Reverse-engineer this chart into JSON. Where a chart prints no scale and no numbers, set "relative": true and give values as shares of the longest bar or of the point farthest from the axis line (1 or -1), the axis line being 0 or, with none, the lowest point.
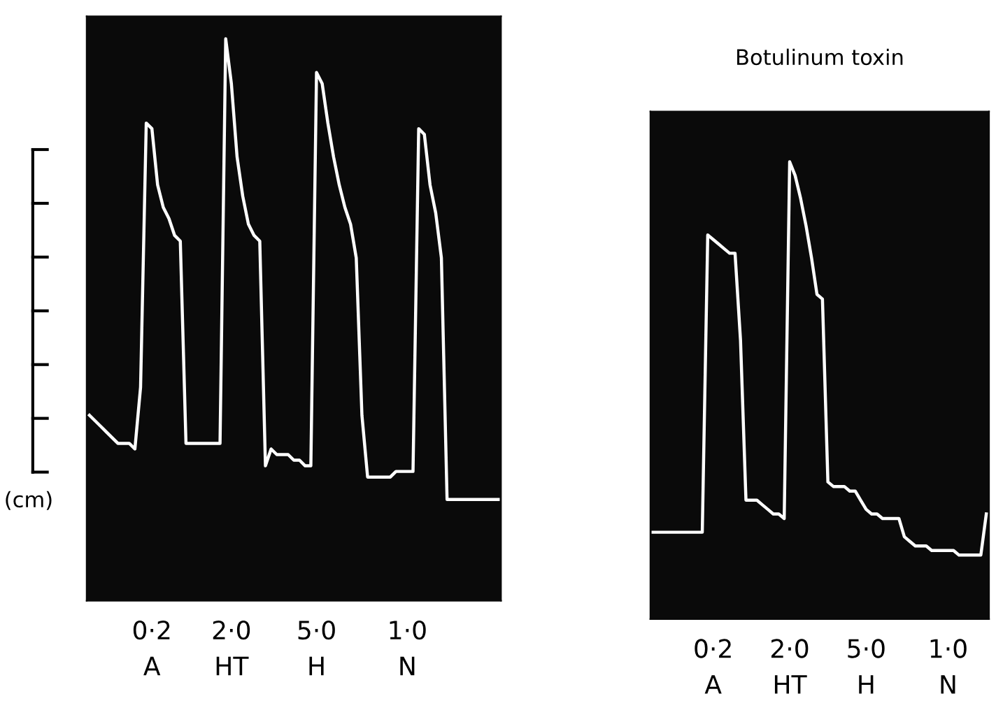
{
  "chart_data": [
    {
      "type": "line",
      "relative": true,
      "ylabel": "(cm)",
      "categories": [
        null,
        null,
        null,
        null,
        null,
        null,
        null,
        null,
        null,
        null,
        null,
        "0·2\nA",
        null,
        null,
        null,
        null,
        null,
        null,
        null,
        null,
        null,
        null,
        null,
        null,
        null,
        "2·0\nHT",
        null,
        null,
        null,
        null,
        null,
        null,
        null,
        null,
        null,
        null,
        null,
        null,
        null,
        null,
        "5·0\nH",
        null,
        null,
        null,
        null,
        null,
        null,
        null,
        null,
        null,
        null,
        null,
        null,
        null,
        null,
        null,
        "1·0\nN",
        null,
        null,
        null,
        null,
        null,
        null,
        null,
        null,
        null,
        null,
        null,
        null,
        null,
        null,
        null,
        null
      ],
      "series": [
        {
          "color": "#ffffff",
          "values": [
            0.33,
            0.32,
            0.31,
            0.3,
            0.29,
            0.28,
            0.28,
            0.28,
            0.27,
            0.38,
            0.85,
            0.84,
            0.74,
            0.7,
            0.68,
            0.65,
            0.64,
            0.28,
            0.28,
            0.28,
            0.28,
            0.28,
            0.28,
            0.28,
            1.0,
            0.92,
            0.79,
            0.72,
            0.67,
            0.65,
            0.64,
            0.24,
            0.27,
            0.26,
            0.26,
            0.26,
            0.25,
            0.25,
            0.24,
            0.24,
            0.94,
            0.92,
            0.85,
            0.79,
            0.74,
            0.7,
            0.67,
            0.61,
            0.33,
            0.22,
            0.22,
            0.22,
            0.22,
            0.22,
            0.23,
            0.23,
            0.23,
            0.23,
            0.84,
            0.83,
            0.74,
            0.69,
            0.61,
            0.18,
            0.18,
            0.18,
            0.18,
            0.18,
            0.18,
            0.18,
            0.18,
            0.18,
            0.18
          ]
        }
      ]
    },
    {
      "type": "line",
      "relative": true,
      "title": "Botulinum toxin",
      "categories": [
        null,
        null,
        null,
        null,
        null,
        null,
        null,
        null,
        null,
        null,
        null,
        "0·2\nA",
        null,
        null,
        null,
        null,
        null,
        null,
        null,
        null,
        null,
        null,
        null,
        null,
        null,
        "2·0\nHT",
        null,
        null,
        null,
        null,
        null,
        null,
        null,
        null,
        null,
        null,
        null,
        null,
        null,
        "5·0\nH",
        null,
        null,
        null,
        null,
        null,
        null,
        null,
        null,
        null,
        null,
        null,
        null,
        null,
        null,
        "1·0\nN",
        null,
        null,
        null,
        null,
        null,
        null,
        null
      ],
      "series": [
        {
          "color": "#ffffff",
          "values": [
            0.19,
            0.19,
            0.19,
            0.19,
            0.19,
            0.19,
            0.19,
            0.19,
            0.19,
            0.19,
            0.84,
            0.83,
            0.82,
            0.81,
            0.8,
            0.8,
            0.61,
            0.26,
            0.26,
            0.26,
            0.25,
            0.24,
            0.23,
            0.23,
            0.22,
            1.0,
            0.97,
            0.92,
            0.86,
            0.79,
            0.71,
            0.7,
            0.3,
            0.29,
            0.29,
            0.29,
            0.28,
            0.28,
            0.26,
            0.24,
            0.23,
            0.23,
            0.22,
            0.22,
            0.22,
            0.22,
            0.18,
            0.17,
            0.16,
            0.16,
            0.16,
            0.15,
            0.15,
            0.15,
            0.15,
            0.15,
            0.14,
            0.14,
            0.14,
            0.14,
            0.14,
            0.23
          ]
        }
      ]
    }
  ]
}
